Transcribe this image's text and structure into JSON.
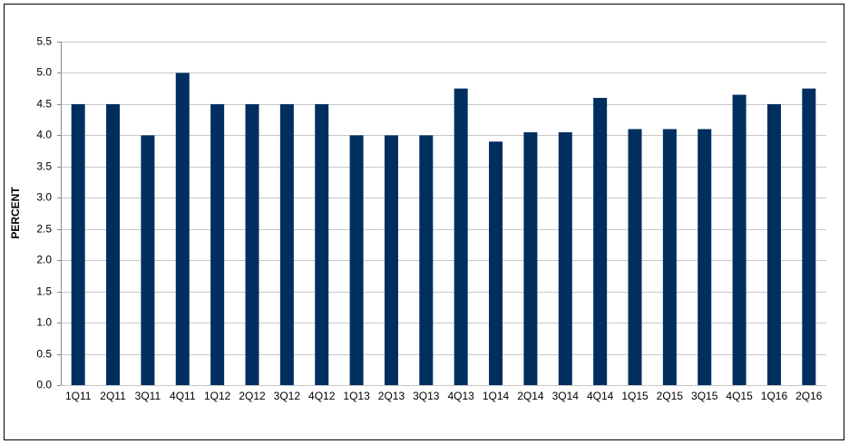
{
  "chart_data": {
    "type": "bar",
    "y_label": "PERCENT",
    "categories": [
      "1Q11",
      "2Q11",
      "3Q11",
      "4Q11",
      "1Q12",
      "2Q12",
      "3Q12",
      "4Q12",
      "1Q13",
      "2Q13",
      "3Q13",
      "4Q13",
      "1Q14",
      "2Q14",
      "3Q14",
      "4Q14",
      "1Q15",
      "2Q15",
      "3Q15",
      "4Q15",
      "1Q16",
      "2Q16"
    ],
    "values": [
      4.5,
      4.5,
      4.0,
      5.0,
      4.5,
      4.5,
      4.5,
      4.5,
      4.0,
      4.0,
      4.0,
      4.75,
      3.9,
      4.05,
      4.05,
      4.6,
      4.1,
      4.1,
      4.1,
      4.65,
      4.5,
      4.75
    ],
    "color": "#002f5f",
    "ylim": [
      0,
      5.5
    ],
    "yticks": [
      {
        "value": 0,
        "label": "0.0"
      },
      0.5,
      {
        "value": 1,
        "label": "1.0"
      },
      1.5,
      {
        "value": 2,
        "label": "2.0"
      },
      2.5,
      {
        "value": 3,
        "label": "3.0"
      },
      3.5,
      {
        "value": 4,
        "label": "4.0"
      },
      4.5,
      {
        "value": 5,
        "label": "5.0"
      },
      5.5
    ],
    "grid": true
  }
}
